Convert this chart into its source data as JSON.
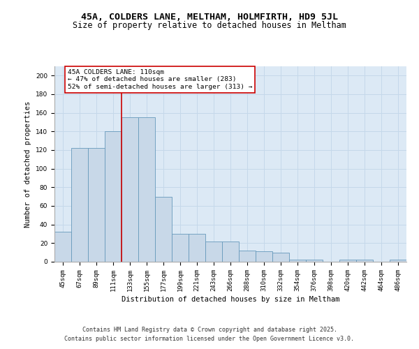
{
  "title1": "45A, COLDERS LANE, MELTHAM, HOLMFIRTH, HD9 5JL",
  "title2": "Size of property relative to detached houses in Meltham",
  "xlabel": "Distribution of detached houses by size in Meltham",
  "ylabel": "Number of detached properties",
  "categories": [
    "45sqm",
    "67sqm",
    "89sqm",
    "111sqm",
    "133sqm",
    "155sqm",
    "177sqm",
    "199sqm",
    "221sqm",
    "243sqm",
    "266sqm",
    "288sqm",
    "310sqm",
    "332sqm",
    "354sqm",
    "376sqm",
    "398sqm",
    "420sqm",
    "442sqm",
    "464sqm",
    "486sqm"
  ],
  "values": [
    32,
    122,
    122,
    140,
    155,
    155,
    70,
    30,
    30,
    22,
    22,
    12,
    11,
    10,
    2,
    2,
    0,
    2,
    2,
    0,
    2
  ],
  "bar_color": "#c8d8e8",
  "bar_edge_color": "#6699bb",
  "vline_x": 3.5,
  "vline_color": "#cc0000",
  "annotation_line1": "45A COLDERS LANE: 110sqm",
  "annotation_line2": "← 47% of detached houses are smaller (283)",
  "annotation_line3": "52% of semi-detached houses are larger (313) →",
  "annotation_box_color": "#ffffff",
  "annotation_box_edge": "#cc0000",
  "ylim": [
    0,
    210
  ],
  "yticks": [
    0,
    20,
    40,
    60,
    80,
    100,
    120,
    140,
    160,
    180,
    200
  ],
  "grid_color": "#c5d8ea",
  "bg_color": "#dce9f5",
  "footer_line1": "Contains HM Land Registry data © Crown copyright and database right 2025.",
  "footer_line2": "Contains public sector information licensed under the Open Government Licence v3.0.",
  "title_fontsize": 9.5,
  "subtitle_fontsize": 8.5,
  "tick_fontsize": 6.5,
  "xlabel_fontsize": 7.5,
  "ylabel_fontsize": 7.5,
  "annotation_fontsize": 6.8,
  "footer_fontsize": 6.0
}
